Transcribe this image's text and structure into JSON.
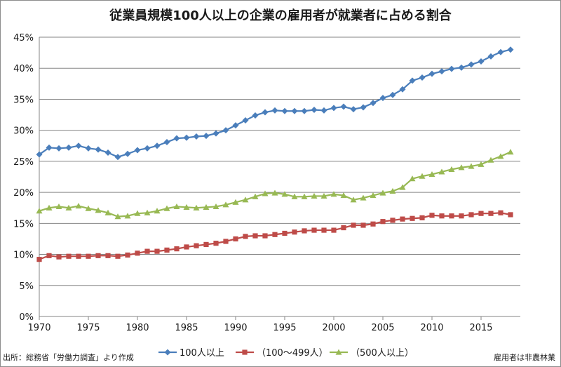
{
  "chart_data": {
    "type": "line",
    "title": "従業員規模100人以上の企業の雇用者が就業者に占める割合",
    "xlabel": "",
    "ylabel": "",
    "ylim": [
      0,
      45
    ],
    "y_ticks": [
      "0%",
      "5%",
      "10%",
      "15%",
      "20%",
      "25%",
      "30%",
      "35%",
      "40%",
      "45%"
    ],
    "xlim": [
      1970,
      2019
    ],
    "x_ticks": [
      "1970",
      "1975",
      "1980",
      "1985",
      "1990",
      "1995",
      "2000",
      "2005",
      "2010",
      "2015"
    ],
    "grid": "horizontal",
    "legend_position": "bottom",
    "x": [
      1970,
      1971,
      1972,
      1973,
      1974,
      1975,
      1976,
      1977,
      1978,
      1979,
      1980,
      1981,
      1982,
      1983,
      1984,
      1985,
      1986,
      1987,
      1988,
      1989,
      1990,
      1991,
      1992,
      1993,
      1994,
      1995,
      1996,
      1997,
      1998,
      1999,
      2000,
      2001,
      2002,
      2003,
      2004,
      2005,
      2006,
      2007,
      2008,
      2009,
      2010,
      2011,
      2012,
      2013,
      2014,
      2015,
      2016,
      2017,
      2018
    ],
    "series": [
      {
        "name": "100人以上",
        "color": "#4a7ebb",
        "marker": "diamond",
        "values": [
          26.1,
          27.2,
          27.1,
          27.2,
          27.5,
          27.1,
          26.9,
          26.4,
          25.7,
          26.2,
          26.8,
          27.1,
          27.5,
          28.1,
          28.7,
          28.8,
          29.0,
          29.1,
          29.5,
          30.0,
          30.8,
          31.6,
          32.4,
          32.9,
          33.2,
          33.1,
          33.1,
          33.1,
          33.3,
          33.2,
          33.6,
          33.8,
          33.4,
          33.7,
          34.4,
          35.2,
          35.7,
          36.6,
          38.0,
          38.5,
          39.1,
          39.5,
          39.9,
          40.1,
          40.6,
          41.1,
          41.9,
          42.6,
          43.0
        ]
      },
      {
        "name": "（100～499人）",
        "color": "#be4b48",
        "marker": "square",
        "values": [
          9.2,
          9.8,
          9.6,
          9.7,
          9.7,
          9.7,
          9.8,
          9.8,
          9.7,
          9.9,
          10.2,
          10.5,
          10.5,
          10.7,
          10.9,
          11.2,
          11.4,
          11.6,
          11.8,
          12.1,
          12.5,
          12.9,
          13.0,
          13.0,
          13.2,
          13.4,
          13.6,
          13.8,
          13.9,
          13.9,
          13.9,
          14.3,
          14.7,
          14.7,
          14.9,
          15.3,
          15.5,
          15.7,
          15.8,
          15.9,
          16.3,
          16.2,
          16.2,
          16.2,
          16.4,
          16.6,
          16.6,
          16.7,
          16.4
        ]
      },
      {
        "name": "（500人以上）",
        "color": "#98b954",
        "marker": "triangle",
        "values": [
          17.0,
          17.5,
          17.7,
          17.5,
          17.8,
          17.4,
          17.1,
          16.7,
          16.1,
          16.2,
          16.6,
          16.7,
          17.0,
          17.4,
          17.7,
          17.6,
          17.5,
          17.6,
          17.7,
          18.0,
          18.4,
          18.8,
          19.3,
          19.8,
          19.9,
          19.7,
          19.3,
          19.3,
          19.4,
          19.4,
          19.7,
          19.5,
          18.8,
          19.1,
          19.5,
          19.9,
          20.2,
          20.8,
          22.2,
          22.6,
          22.9,
          23.3,
          23.7,
          24.0,
          24.2,
          24.5,
          25.2,
          25.8,
          26.5
        ]
      }
    ]
  },
  "footer": {
    "source": "出所：総務省「労働力調査」より作成",
    "note": "雇用者は非農林業"
  }
}
